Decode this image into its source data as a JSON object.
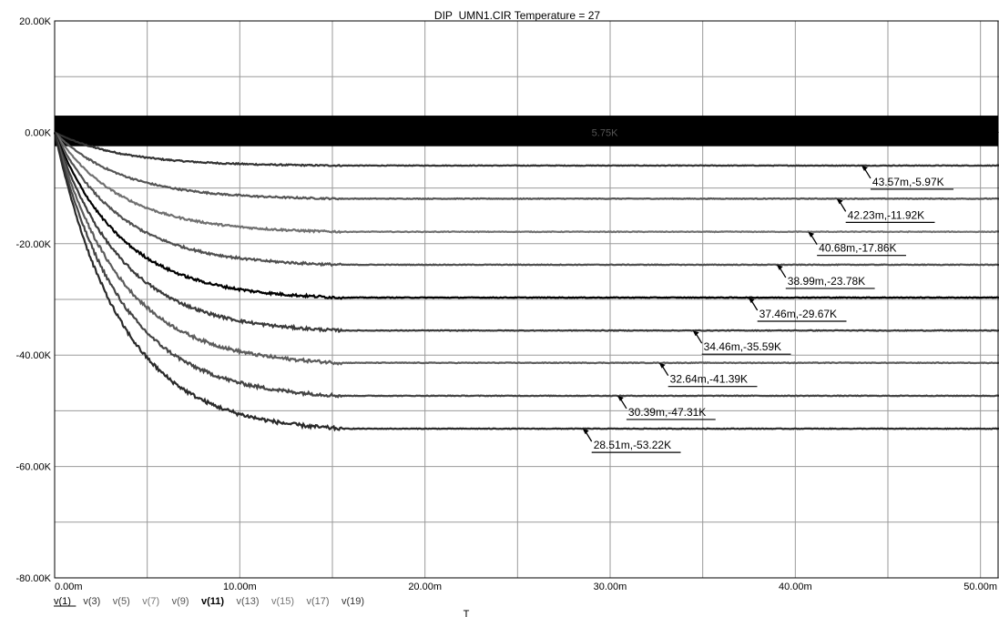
{
  "chart_data": {
    "type": "line",
    "title": "DIP_UMN1.CIR Temperature = 27",
    "xlabel": "T",
    "ylabel": "",
    "xlim": [
      0,
      0.051
    ],
    "ylim": [
      -80000,
      20000
    ],
    "grid": true,
    "x_ticks": [
      {
        "value": 0,
        "label": "0.00m"
      },
      {
        "value": 0.01,
        "label": "10.00m"
      },
      {
        "value": 0.02,
        "label": "20.00m"
      },
      {
        "value": 0.03,
        "label": "30.00m"
      },
      {
        "value": 0.04,
        "label": "40.00m"
      },
      {
        "value": 0.05,
        "label": "50.00m"
      }
    ],
    "y_ticks": [
      {
        "value": 20000,
        "label": "20.00K"
      },
      {
        "value": 0,
        "label": "0.00K"
      },
      {
        "value": -20000,
        "label": "-20.00K"
      },
      {
        "value": -40000,
        "label": "-40.00K"
      },
      {
        "value": -60000,
        "label": "-60.00K"
      },
      {
        "value": -80000,
        "label": "-80.00K"
      }
    ],
    "legend_position": "bottom-left",
    "series": [
      {
        "name": "v(1)",
        "kind": "band",
        "band_low": -2500,
        "band_high": 3000,
        "settle_time": 0.0155,
        "noise": 0,
        "color": "#000000",
        "legend_color": "#000000",
        "underline": true
      },
      {
        "name": "v(3)",
        "kind": "decay",
        "final": -5970,
        "settle_time": 0.0155,
        "tau": 0.0036,
        "noise": 250,
        "color": "#333333",
        "legend_color": "#333333"
      },
      {
        "name": "v(5)",
        "kind": "decay",
        "final": -11920,
        "settle_time": 0.0155,
        "tau": 0.0036,
        "noise": 300,
        "color": "#555555",
        "legend_color": "#555555"
      },
      {
        "name": "v(7)",
        "kind": "decay",
        "final": -17860,
        "settle_time": 0.0155,
        "tau": 0.0036,
        "noise": 350,
        "color": "#707070",
        "legend_color": "#777777"
      },
      {
        "name": "v(9)",
        "kind": "decay",
        "final": -23780,
        "settle_time": 0.0155,
        "tau": 0.0036,
        "noise": 400,
        "color": "#505050",
        "legend_color": "#555555"
      },
      {
        "name": "v(11)",
        "kind": "decay",
        "final": -29670,
        "settle_time": 0.0155,
        "tau": 0.0036,
        "noise": 450,
        "color": "#000000",
        "legend_color": "#000000",
        "bold": true
      },
      {
        "name": "v(13)",
        "kind": "decay",
        "final": -35590,
        "settle_time": 0.0155,
        "tau": 0.0036,
        "noise": 500,
        "color": "#3a3a3a",
        "legend_color": "#555555"
      },
      {
        "name": "v(15)",
        "kind": "decay",
        "final": -41390,
        "settle_time": 0.0155,
        "tau": 0.0036,
        "noise": 550,
        "color": "#5c5c5c",
        "legend_color": "#777777"
      },
      {
        "name": "v(17)",
        "kind": "decay",
        "final": -47310,
        "settle_time": 0.0155,
        "tau": 0.0036,
        "noise": 600,
        "color": "#444444",
        "legend_color": "#666666"
      },
      {
        "name": "v(19)",
        "kind": "decay",
        "final": -53220,
        "settle_time": 0.0155,
        "tau": 0.0036,
        "noise": 650,
        "color": "#2a2a2a",
        "legend_color": "#333333"
      }
    ],
    "annotations": [
      {
        "text": "43.57m,-5.97K",
        "x": 0.04357,
        "y": -5970
      },
      {
        "text": "42.23m,-11.92K",
        "x": 0.04223,
        "y": -11920
      },
      {
        "text": "40.68m,-17.86K",
        "x": 0.04068,
        "y": -17860
      },
      {
        "text": "38.99m,-23.78K",
        "x": 0.03899,
        "y": -23780
      },
      {
        "text": "37.46m,-29.67K",
        "x": 0.03746,
        "y": -29670
      },
      {
        "text": "34.46m,-35.59K",
        "x": 0.03446,
        "y": -35590
      },
      {
        "text": "32.64m,-41.39K",
        "x": 0.03264,
        "y": -41390
      },
      {
        "text": "30.39m,-47.31K",
        "x": 0.03039,
        "y": -47310
      },
      {
        "text": "28.51m,-53.22K",
        "x": 0.02851,
        "y": -53220
      }
    ],
    "band_annotation": {
      "text": "5.75K",
      "x": 0.029,
      "y": 0
    }
  }
}
